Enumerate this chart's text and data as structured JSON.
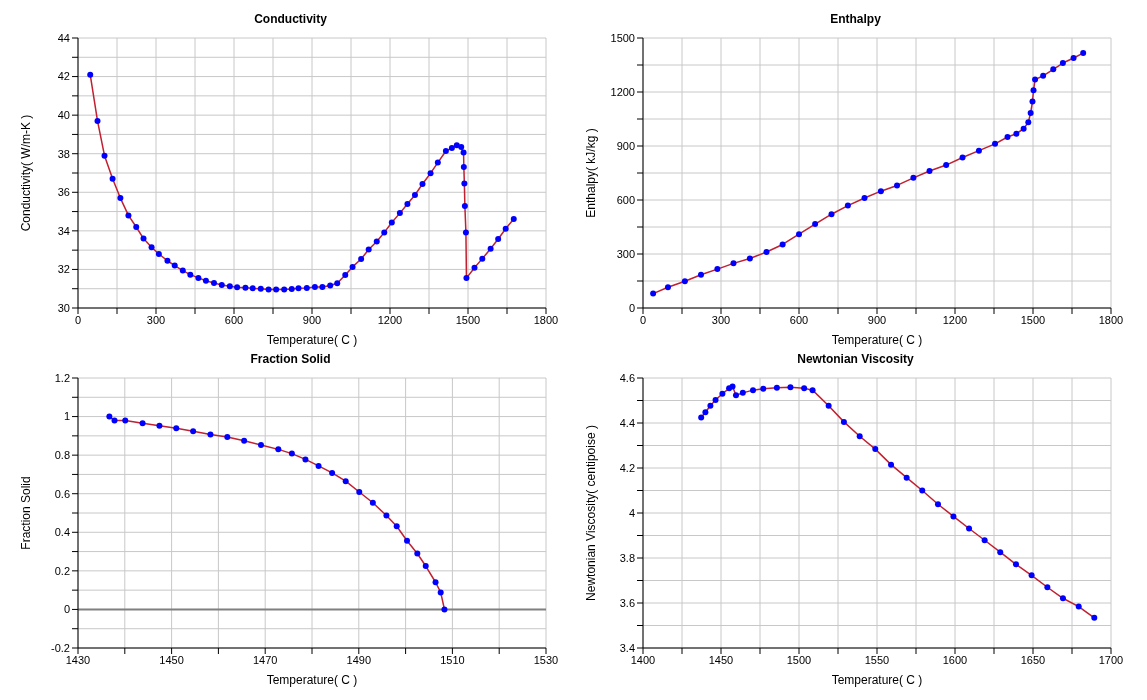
{
  "chart_data": [
    {
      "type": "line",
      "title": "Conductivity",
      "xlabel": "Temperature( C )",
      "ylabel": "Conductivity( W/m-K )",
      "marker": "circle",
      "line_style": "solid",
      "grid": true,
      "xlim": [
        0,
        1800
      ],
      "xticks": [
        0,
        {
          "value": 150,
          "label": null
        },
        300,
        {
          "value": 450,
          "label": null
        },
        600,
        {
          "value": 750,
          "label": null
        },
        900,
        {
          "value": 1050,
          "label": null
        },
        1200,
        {
          "value": 1350,
          "label": null
        },
        1500,
        {
          "value": 1650,
          "label": null
        },
        1800
      ],
      "ylim": [
        30,
        44
      ],
      "yticks": [
        30,
        {
          "value": 31,
          "label": null
        },
        32,
        {
          "value": 33,
          "label": null
        },
        34,
        {
          "value": 35,
          "label": null
        },
        36,
        {
          "value": 37,
          "label": null
        },
        38,
        {
          "value": 39,
          "label": null
        },
        40,
        {
          "value": 41,
          "label": null
        },
        42,
        {
          "value": 43,
          "label": null
        },
        44
      ],
      "series": [
        {
          "color": "#0000ff",
          "x": [
            47,
            75,
            102,
            133,
            163,
            194,
            224,
            252,
            283,
            311,
            344,
            372,
            403,
            432,
            463,
            492,
            523,
            553,
            584,
            612,
            644,
            672,
            703,
            733,
            762,
            793,
            822,
            848,
            880,
            911,
            940,
            970,
            997,
            1028,
            1056,
            1089,
            1118,
            1149,
            1178,
            1207,
            1238,
            1267,
            1296,
            1325,
            1356,
            1384,
            1415,
            1438,
            1457,
            1474,
            1483,
            1484,
            1486,
            1488,
            1492,
            1494,
            1525,
            1555,
            1587,
            1616,
            1645,
            1676
          ],
          "values": [
            42.1,
            39.7,
            37.9,
            36.7,
            35.7,
            34.8,
            34.2,
            33.6,
            33.15,
            32.8,
            32.45,
            32.2,
            31.94,
            31.73,
            31.56,
            31.41,
            31.3,
            31.19,
            31.13,
            31.07,
            31.05,
            31.02,
            31.0,
            30.96,
            30.96,
            30.96,
            30.98,
            31.02,
            31.04,
            31.09,
            31.09,
            31.17,
            31.28,
            31.71,
            32.13,
            32.54,
            33.03,
            33.45,
            33.92,
            34.43,
            34.92,
            35.39,
            35.86,
            36.43,
            36.99,
            37.54,
            38.14,
            38.29,
            38.44,
            38.35,
            38.06,
            37.31,
            36.46,
            35.29,
            33.92,
            31.55,
            32.09,
            32.56,
            33.07,
            33.58,
            34.11,
            34.62
          ]
        }
      ]
    },
    {
      "type": "line",
      "title": "Enthalpy",
      "xlabel": "Temperature( C )",
      "ylabel": "Enthalpy( kJ/kg )",
      "marker": "circle",
      "line_style": "solid",
      "grid": true,
      "xlim": [
        0,
        1800
      ],
      "xticks": [
        0,
        {
          "value": 150,
          "label": null
        },
        300,
        {
          "value": 450,
          "label": null
        },
        600,
        {
          "value": 750,
          "label": null
        },
        900,
        {
          "value": 1050,
          "label": null
        },
        1200,
        {
          "value": 1350,
          "label": null
        },
        1500,
        {
          "value": 1650,
          "label": null
        },
        1800
      ],
      "ylim": [
        0,
        1500
      ],
      "yticks": [
        0,
        {
          "value": 150,
          "label": null
        },
        300,
        {
          "value": 450,
          "label": null
        },
        600,
        {
          "value": 750,
          "label": null
        },
        900,
        {
          "value": 1050,
          "label": null
        },
        1200,
        {
          "value": 1350,
          "label": null
        },
        1500
      ],
      "series": [
        {
          "color": "#0000ff",
          "x": [
            39,
            96,
            161,
            223,
            286,
            348,
            411,
            475,
            537,
            600,
            662,
            725,
            788,
            852,
            915,
            977,
            1040,
            1102,
            1166,
            1229,
            1292,
            1354,
            1402,
            1436,
            1464,
            1482,
            1491,
            1498,
            1502,
            1508,
            1539,
            1578,
            1615,
            1656,
            1693
          ],
          "values": [
            80,
            115,
            149,
            185,
            216,
            248,
            275,
            311,
            353,
            410,
            466,
            521,
            569,
            611,
            649,
            681,
            723,
            761,
            794,
            836,
            874,
            912,
            950,
            968,
            996,
            1032,
            1084,
            1147,
            1210,
            1269,
            1290,
            1326,
            1361,
            1389,
            1416
          ]
        }
      ]
    },
    {
      "type": "line",
      "title": "Fraction Solid",
      "xlabel": "Temperature( C )",
      "ylabel": "Fraction Solid",
      "marker": "circle",
      "line_style": "solid",
      "grid": true,
      "xlim": [
        1430,
        1530
      ],
      "xticks": [
        1430,
        {
          "value": 1440,
          "label": null
        },
        1450,
        {
          "value": 1460,
          "label": null
        },
        1470,
        {
          "value": 1480,
          "label": null
        },
        1490,
        {
          "value": 1500,
          "label": null
        },
        1510,
        {
          "value": 1520,
          "label": null
        },
        1530
      ],
      "ylim": [
        -0.2,
        1.2
      ],
      "yticks": [
        -0.2,
        {
          "value": -0.1,
          "label": null
        },
        0,
        {
          "value": 0.1,
          "label": null
        },
        0.2,
        {
          "value": 0.3,
          "label": null
        },
        0.4,
        {
          "value": 0.5,
          "label": null
        },
        0.6,
        {
          "value": 0.7,
          "label": null
        },
        0.8,
        {
          "value": 0.9,
          "label": null
        },
        1,
        {
          "value": 1.1,
          "label": null
        },
        1.2
      ],
      "ref_lines": [
        {
          "axis": "y",
          "value": 0,
          "color": "#808080"
        }
      ],
      "series": [
        {
          "color": "#0000ff",
          "x": [
            1436.7,
            1437.8,
            1440.1,
            1443.8,
            1447.4,
            1451.0,
            1454.6,
            1458.3,
            1461.9,
            1465.5,
            1469.1,
            1472.8,
            1475.7,
            1478.6,
            1481.4,
            1484.3,
            1487.2,
            1490.1,
            1493.0,
            1495.9,
            1498.1,
            1500.3,
            1502.5,
            1504.3,
            1506.4,
            1507.5,
            1508.3
          ],
          "values": [
            1.0,
            0.98,
            0.98,
            0.965,
            0.952,
            0.939,
            0.924,
            0.907,
            0.894,
            0.875,
            0.853,
            0.83,
            0.808,
            0.778,
            0.744,
            0.708,
            0.665,
            0.609,
            0.553,
            0.487,
            0.431,
            0.356,
            0.29,
            0.225,
            0.141,
            0.088,
            0
          ]
        }
      ]
    },
    {
      "type": "line",
      "title": "Newtonian Viscosity",
      "xlabel": "Temperature( C )",
      "ylabel": "Newtonian Viscosity( centipoise )",
      "marker": "circle",
      "line_style": "solid",
      "grid": true,
      "xlim": [
        1400,
        1700
      ],
      "xticks": [
        1400,
        {
          "value": 1425,
          "label": null
        },
        1450,
        {
          "value": 1475,
          "label": null
        },
        1500,
        {
          "value": 1525,
          "label": null
        },
        1550,
        {
          "value": 1575,
          "label": null
        },
        1600,
        {
          "value": 1625,
          "label": null
        },
        1650,
        {
          "value": 1675,
          "label": null
        },
        1700
      ],
      "ylim": [
        3.4,
        4.6
      ],
      "yticks": [
        3.4,
        {
          "value": 3.5,
          "label": null
        },
        3.6,
        {
          "value": 3.7,
          "label": null
        },
        3.8,
        {
          "value": 3.9,
          "label": null
        },
        4,
        {
          "value": 4.1,
          "label": null
        },
        4.2,
        {
          "value": 4.3,
          "label": null
        },
        4.4,
        {
          "value": 4.5,
          "label": null
        },
        4.6
      ],
      "series": [
        {
          "color": "#0000ff",
          "x": [
            1437.3,
            1440.0,
            1443.2,
            1446.5,
            1450.9,
            1455.2,
            1457.4,
            1459.6,
            1464,
            1470.5,
            1477.1,
            1485.8,
            1494.5,
            1503.3,
            1508.7,
            1519.0,
            1528.8,
            1538.9,
            1548.9,
            1559.0,
            1569.0,
            1579.0,
            1589.1,
            1599.0,
            1609.0,
            1619.0,
            1629.0,
            1639.1,
            1649.1,
            1659.2,
            1669.2,
            1679.3,
            1689.3
          ],
          "values": [
            4.425,
            4.448,
            4.477,
            4.502,
            4.53,
            4.554,
            4.562,
            4.523,
            4.534,
            4.546,
            4.552,
            4.557,
            4.559,
            4.554,
            4.546,
            4.477,
            4.405,
            4.341,
            4.284,
            4.215,
            4.157,
            4.1,
            4.039,
            3.985,
            3.931,
            3.879,
            3.826,
            3.772,
            3.723,
            3.67,
            3.621,
            3.584,
            3.534
          ]
        }
      ]
    }
  ]
}
